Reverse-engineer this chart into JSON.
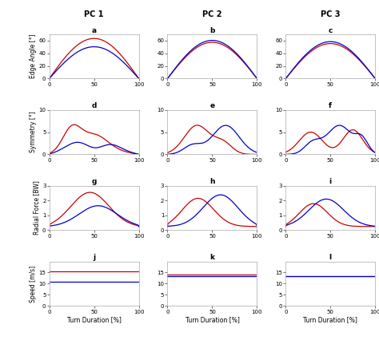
{
  "title_row": [
    "PC 1",
    "PC 2",
    "PC 3"
  ],
  "subplot_labels": [
    [
      "a",
      "b",
      "c"
    ],
    [
      "d",
      "e",
      "f"
    ],
    [
      "g",
      "h",
      "i"
    ],
    [
      "j",
      "k",
      "l"
    ]
  ],
  "row_ylabels": [
    "Edge Angle [°]",
    "Symmetry [°]",
    "Radial Force [BW]",
    "Speed [m/s]"
  ],
  "col_xlabel": "Turn Duration [%]",
  "red_color": "#cc0000",
  "blue_color": "#0000cc",
  "background": "#ffffff",
  "row0_ylim": [
    0,
    70
  ],
  "row1_ylim": [
    0,
    10
  ],
  "row2_ylim": [
    0,
    3
  ],
  "row3_ylim": [
    0,
    20
  ],
  "row0_yticks": [
    0,
    20,
    40,
    60
  ],
  "row1_yticks": [
    0,
    5,
    10
  ],
  "row2_yticks": [
    0,
    1,
    2,
    3
  ],
  "row3_yticks": [
    0,
    5,
    10,
    15
  ],
  "xticks": [
    0,
    50,
    100
  ]
}
